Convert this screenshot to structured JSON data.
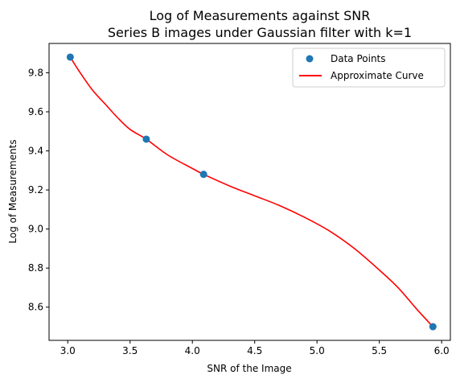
{
  "chart_data": {
    "type": "scatter",
    "title": "Log of Measurements against SNR",
    "subtitle": "Series B images under Gaussian filter with k=1",
    "xlabel": "SNR of the Image",
    "ylabel": "Log of Measurements",
    "xlim": [
      2.85,
      6.07
    ],
    "ylim": [
      8.43,
      9.95
    ],
    "xticks": [
      3.0,
      3.5,
      4.0,
      4.5,
      5.0,
      5.5,
      6.0
    ],
    "yticks": [
      8.6,
      8.8,
      9.0,
      9.2,
      9.4,
      9.6,
      9.8
    ],
    "grid": false,
    "legend_position": "top-right",
    "series": [
      {
        "name": "Data Points",
        "kind": "scatter",
        "color": "#1f77b4",
        "points": [
          {
            "x": 3.02,
            "y": 9.88
          },
          {
            "x": 3.63,
            "y": 9.46
          },
          {
            "x": 4.09,
            "y": 9.28
          },
          {
            "x": 5.93,
            "y": 8.5
          }
        ]
      },
      {
        "name": "Approximate Curve",
        "kind": "line",
        "color": "#ff0000",
        "points": [
          {
            "x": 3.02,
            "y": 9.88
          },
          {
            "x": 3.1,
            "y": 9.8
          },
          {
            "x": 3.2,
            "y": 9.71
          },
          {
            "x": 3.3,
            "y": 9.64
          },
          {
            "x": 3.4,
            "y": 9.57
          },
          {
            "x": 3.5,
            "y": 9.51
          },
          {
            "x": 3.63,
            "y": 9.46
          },
          {
            "x": 3.8,
            "y": 9.38
          },
          {
            "x": 4.0,
            "y": 9.31
          },
          {
            "x": 4.09,
            "y": 9.28
          },
          {
            "x": 4.3,
            "y": 9.22
          },
          {
            "x": 4.5,
            "y": 9.17
          },
          {
            "x": 4.7,
            "y": 9.12
          },
          {
            "x": 4.9,
            "y": 9.06
          },
          {
            "x": 5.1,
            "y": 8.99
          },
          {
            "x": 5.3,
            "y": 8.9
          },
          {
            "x": 5.5,
            "y": 8.79
          },
          {
            "x": 5.65,
            "y": 8.7
          },
          {
            "x": 5.8,
            "y": 8.59
          },
          {
            "x": 5.93,
            "y": 8.5
          }
        ]
      }
    ]
  }
}
